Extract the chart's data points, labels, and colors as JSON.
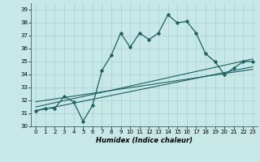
{
  "xlabel": "Humidex (Indice chaleur)",
  "background_color": "#c8e8e8",
  "grid_color": "#a8d0d0",
  "line_color": "#1a6060",
  "xlim": [
    -0.5,
    23.5
  ],
  "ylim": [
    30,
    39.5
  ],
  "yticks": [
    30,
    31,
    32,
    33,
    34,
    35,
    36,
    37,
    38,
    39
  ],
  "xticks": [
    0,
    1,
    2,
    3,
    4,
    5,
    6,
    7,
    8,
    9,
    10,
    11,
    12,
    13,
    14,
    15,
    16,
    17,
    18,
    19,
    20,
    21,
    22,
    23
  ],
  "main_line_x": [
    0,
    1,
    2,
    3,
    4,
    5,
    6,
    7,
    8,
    9,
    10,
    11,
    12,
    13,
    14,
    15,
    16,
    17,
    18,
    19,
    20,
    21,
    22,
    23
  ],
  "main_line_y": [
    31.2,
    31.4,
    31.4,
    32.3,
    31.9,
    30.4,
    31.6,
    34.3,
    35.5,
    37.2,
    36.1,
    37.2,
    36.7,
    37.2,
    38.6,
    38.0,
    38.1,
    37.2,
    35.6,
    35.0,
    34.0,
    34.5,
    35.0,
    35.0
  ],
  "reg_lines": [
    [
      [
        0,
        23
      ],
      [
        31.5,
        35.2
      ]
    ],
    [
      [
        0,
        23
      ],
      [
        31.2,
        34.6
      ]
    ],
    [
      [
        0,
        23
      ],
      [
        31.9,
        34.4
      ]
    ]
  ]
}
